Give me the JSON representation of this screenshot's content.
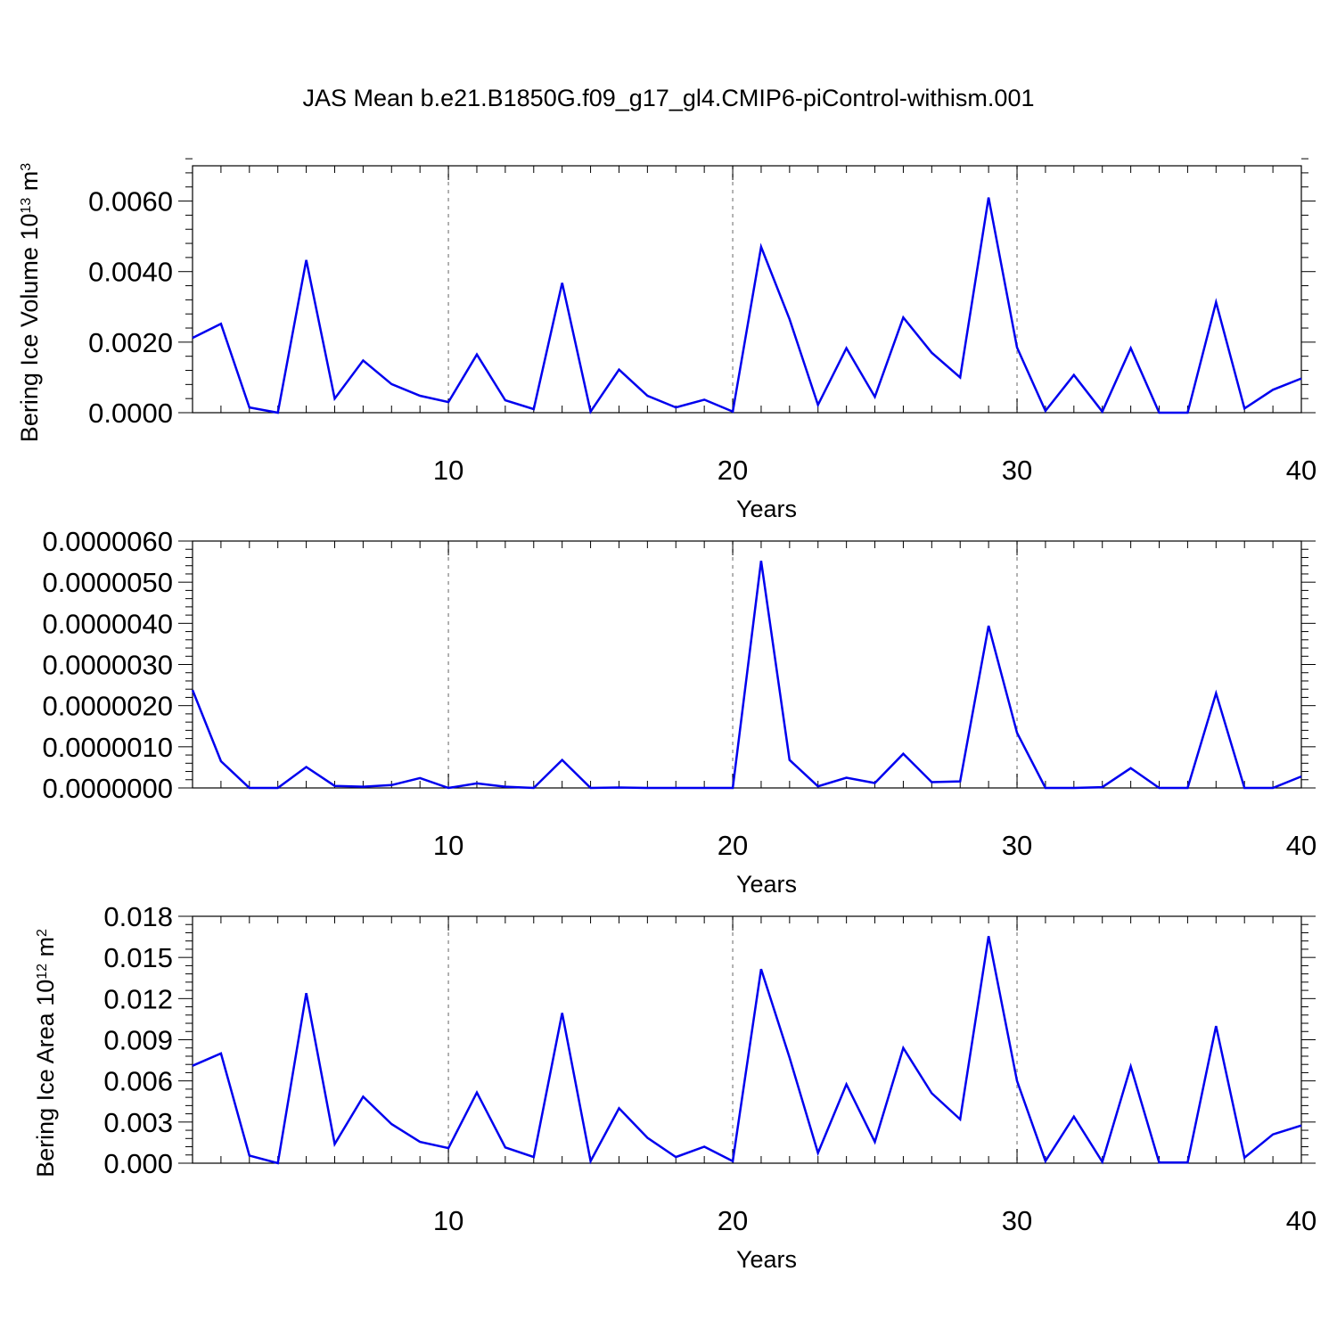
{
  "title": "JAS Mean b.e21.B1850G.f09_g17_gl4.CMIP6-piControl-withism.001",
  "colors": {
    "line": "#0000ee",
    "grid": "#999999",
    "axis": "#000000"
  },
  "chart_data": [
    {
      "type": "line",
      "xlabel": "Years",
      "ylabel_text": "Bering Ice Volume 10",
      "ylabel_exp": "13",
      "ylabel_unit": " m",
      "ylabel_unit_exp": "3",
      "xlim": [
        1,
        40
      ],
      "ylim": [
        0,
        0.007
      ],
      "xticks": [
        10,
        20,
        30,
        40
      ],
      "xtick_labels": [
        "10",
        "20",
        "30",
        "40"
      ],
      "yticks": [
        0,
        0.002,
        0.004,
        0.006
      ],
      "ytick_labels": [
        "0.0000",
        "0.0020",
        "0.0040",
        "0.0060"
      ],
      "yminor_step": 0.0004,
      "gridlines_x": [
        10,
        20,
        30
      ],
      "x": [
        1,
        2,
        3,
        4,
        5,
        6,
        7,
        8,
        9,
        10,
        11,
        12,
        13,
        14,
        15,
        16,
        17,
        18,
        19,
        20,
        21,
        22,
        23,
        24,
        25,
        26,
        27,
        28,
        29,
        30,
        31,
        32,
        33,
        34,
        35,
        36,
        37,
        38,
        39,
        40
      ],
      "values": [
        0.00212,
        0.00252,
        0.00015,
        0.0,
        0.00433,
        0.0004,
        0.00148,
        0.00081,
        0.00048,
        0.0003,
        0.00165,
        0.00035,
        0.0001,
        0.00368,
        3e-05,
        0.00122,
        0.00048,
        0.00015,
        0.00037,
        3e-05,
        0.0047,
        0.00265,
        0.00022,
        0.00183,
        0.00045,
        0.0027,
        0.0017,
        0.001,
        0.0061,
        0.00185,
        5e-05,
        0.00107,
        3e-05,
        0.00183,
        0.0,
        0.0,
        0.00313,
        0.00012,
        0.00065,
        0.00097
      ]
    },
    {
      "type": "line",
      "xlabel": "Years",
      "ylabel_text": "",
      "xlim": [
        1,
        40
      ],
      "ylim": [
        0,
        6e-06
      ],
      "xticks": [
        10,
        20,
        30,
        40
      ],
      "xtick_labels": [
        "10",
        "20",
        "30",
        "40"
      ],
      "yticks": [
        0,
        1e-06,
        2e-06,
        3e-06,
        4e-06,
        5e-06,
        6e-06
      ],
      "ytick_labels": [
        "0.0000000",
        "0.0000010",
        "0.0000020",
        "0.0000030",
        "0.0000040",
        "0.0000050",
        "0.0000060"
      ],
      "yminor_step": 2e-07,
      "gridlines_x": [
        10,
        20,
        30
      ],
      "x": [
        1,
        2,
        3,
        4,
        5,
        6,
        7,
        8,
        9,
        10,
        11,
        12,
        13,
        14,
        15,
        16,
        17,
        18,
        19,
        20,
        21,
        22,
        23,
        24,
        25,
        26,
        27,
        28,
        29,
        30,
        31,
        32,
        33,
        34,
        35,
        36,
        37,
        38,
        39,
        40
      ],
      "values": [
        2.38e-06,
        6.5e-07,
        0.0,
        0.0,
        5.1e-07,
        5e-08,
        3e-08,
        7e-08,
        2.4e-07,
        0.0,
        1.1e-07,
        3e-08,
        0.0,
        6.8e-07,
        0.0,
        1e-08,
        0.0,
        0.0,
        0.0,
        0.0,
        5.52e-06,
        6.8e-07,
        4e-08,
        2.5e-07,
        1.2e-07,
        8.3e-07,
        1.4e-07,
        1.6e-07,
        3.94e-06,
        1.34e-06,
        0.0,
        0.0,
        2e-08,
        4.8e-07,
        0.0,
        0.0,
        2.3e-06,
        0.0,
        0.0,
        2.8e-07
      ]
    },
    {
      "type": "line",
      "xlabel": "Years",
      "ylabel_text": "Bering Ice Area 10",
      "ylabel_exp": "12",
      "ylabel_unit": " m",
      "ylabel_unit_exp": "2",
      "xlim": [
        1,
        40
      ],
      "ylim": [
        0,
        0.018
      ],
      "xticks": [
        10,
        20,
        30,
        40
      ],
      "xtick_labels": [
        "10",
        "20",
        "30",
        "40"
      ],
      "yticks": [
        0,
        0.003,
        0.006,
        0.009,
        0.012,
        0.015,
        0.018
      ],
      "ytick_labels": [
        "0.000",
        "0.003",
        "0.006",
        "0.009",
        "0.012",
        "0.015",
        "0.018"
      ],
      "yminor_step": 0.0006,
      "gridlines_x": [
        10,
        20,
        30
      ],
      "x": [
        1,
        2,
        3,
        4,
        5,
        6,
        7,
        8,
        9,
        10,
        11,
        12,
        13,
        14,
        15,
        16,
        17,
        18,
        19,
        20,
        21,
        22,
        23,
        24,
        25,
        26,
        27,
        28,
        29,
        30,
        31,
        32,
        33,
        34,
        35,
        36,
        37,
        38,
        39,
        40
      ],
      "values": [
        0.0071,
        0.008,
        0.00055,
        0.0,
        0.0124,
        0.0014,
        0.00485,
        0.00285,
        0.00155,
        0.0011,
        0.00515,
        0.00115,
        0.00045,
        0.01095,
        0.00015,
        0.004,
        0.00185,
        0.00045,
        0.0012,
        0.00015,
        0.01415,
        0.0077,
        0.00075,
        0.00575,
        0.00155,
        0.0084,
        0.0051,
        0.0032,
        0.01655,
        0.006,
        0.00015,
        0.0034,
        0.0001,
        0.00705,
        5e-05,
        5e-05,
        0.01,
        0.0004,
        0.0021,
        0.00275
      ]
    }
  ]
}
